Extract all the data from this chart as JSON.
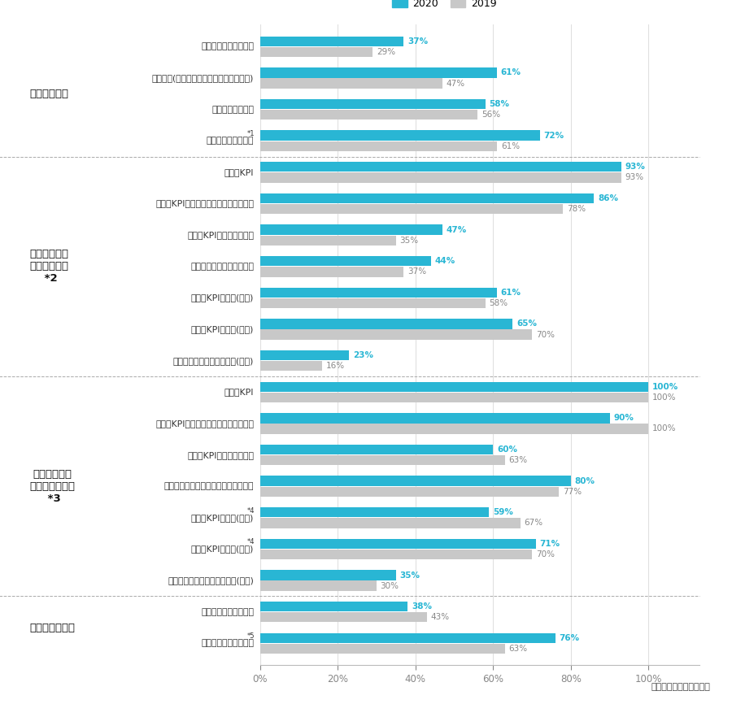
{
  "labels": [
    "制度改定の有無・概要",
    "報酬原則(制度全体に係る基本的な考え方)",
    "報酬ベンチマーク",
    "業績連動報酬の割合",
    "主要なKPI",
    "主要なKPIの選定理由・戦略との関連性",
    "算式・KPIの評価ウェイト",
    "標準額に対する支給変動幅",
    "主要なKPIの目標(前期)",
    "主要なKPIの実績(前期)",
    "総合評価結果・賞与支給率(前期)",
    "主要なKPI",
    "主要なKPIの選定理由・戦略との関連性",
    "算式・KPIの評価ウェイト",
    "基準数に対する交付株式数等の変動幅",
    "主要なKPIの目標(前期)",
    "主要なKPIの実績(前期)",
    "総合評価結果・株式等給付率(前期)",
    "代表取締役等への一任",
    "報酬委員会の活動内容"
  ],
  "label_superscripts": [
    "",
    "",
    "",
    "*1",
    "",
    "",
    "",
    "",
    "",
    "",
    "",
    "",
    "",
    "",
    "",
    "*4",
    "*4",
    "",
    "",
    "*5"
  ],
  "values_2020": [
    37,
    61,
    58,
    72,
    93,
    86,
    47,
    44,
    61,
    65,
    23,
    100,
    90,
    60,
    80,
    59,
    71,
    35,
    38,
    76
  ],
  "values_2019": [
    29,
    47,
    56,
    61,
    93,
    78,
    35,
    37,
    58,
    70,
    16,
    100,
    100,
    63,
    77,
    67,
    70,
    30,
    43,
    63
  ],
  "color_2020": "#29b6d4",
  "color_2019": "#c8c8c8",
  "section_labels": [
    "報酬制度全体",
    "業績連動報酬\n（年次賞与）",
    "業績連動報酬\n（株式報酬等）",
    "報酬決定手続き"
  ],
  "section_superscripts": [
    "",
    "*2",
    "*3",
    ""
  ],
  "section_rows": [
    [
      0,
      3
    ],
    [
      4,
      10
    ],
    [
      11,
      17
    ],
    [
      18,
      19
    ]
  ],
  "divider_after_rows": [
    3,
    10,
    17
  ],
  "bg_color": "#ffffff",
  "title_2020": "2020",
  "title_2019": "2019",
  "xlabel": "開示している企業の割合",
  "bar_height": 0.32,
  "figsize": [
    9.0,
    8.66
  ]
}
